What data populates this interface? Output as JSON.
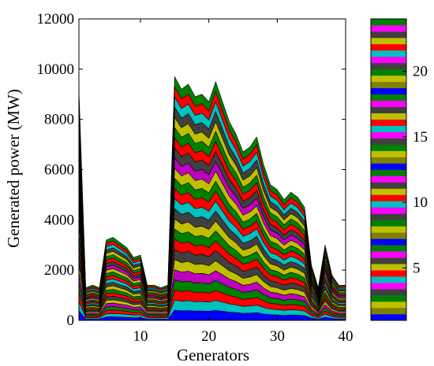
{
  "chart_data": {
    "type": "area",
    "stacked": true,
    "xlabel": "Generators",
    "ylabel": "Generated power (MW)",
    "xlim": [
      1,
      40
    ],
    "ylim": [
      0,
      12000
    ],
    "x_ticks": [
      10,
      20,
      30,
      40
    ],
    "y_ticks": [
      0,
      2000,
      4000,
      6000,
      8000,
      10000,
      12000
    ],
    "grid": false,
    "layers": 24,
    "layer_colors": [
      "#0000ff",
      "#00bfbf",
      "#ff0000",
      "#008000",
      "#bf00bf",
      "#bfbf00",
      "#404040",
      "#ff0000",
      "#008000",
      "#bfbf00",
      "#404040",
      "#00bfbf",
      "#ff0000",
      "#008000",
      "#bfbf00",
      "#bf00bf",
      "#404040",
      "#ff0000",
      "#008000",
      "#bfbf00",
      "#404040",
      "#00bfbf",
      "#ff0000",
      "#008000"
    ],
    "x": [
      1,
      2,
      3,
      4,
      5,
      6,
      7,
      8,
      9,
      10,
      11,
      12,
      13,
      14,
      15,
      16,
      17,
      18,
      19,
      20,
      21,
      22,
      23,
      24,
      25,
      26,
      27,
      28,
      29,
      30,
      31,
      32,
      33,
      34,
      35,
      36,
      37,
      38,
      39,
      40
    ],
    "total_generation": [
      9200,
      1300,
      1400,
      1300,
      3200,
      3300,
      3100,
      2900,
      2500,
      2600,
      1400,
      1400,
      1300,
      1400,
      9700,
      9200,
      9400,
      8900,
      9000,
      8700,
      9500,
      8700,
      7900,
      7400,
      6700,
      6900,
      7300,
      6200,
      5400,
      5200,
      4800,
      5100,
      4900,
      4500,
      2200,
      1300,
      3000,
      1800,
      1400,
      1400
    ],
    "colorbar": {
      "ticks": [
        5,
        10,
        15,
        20
      ],
      "range": [
        1,
        24
      ]
    }
  }
}
